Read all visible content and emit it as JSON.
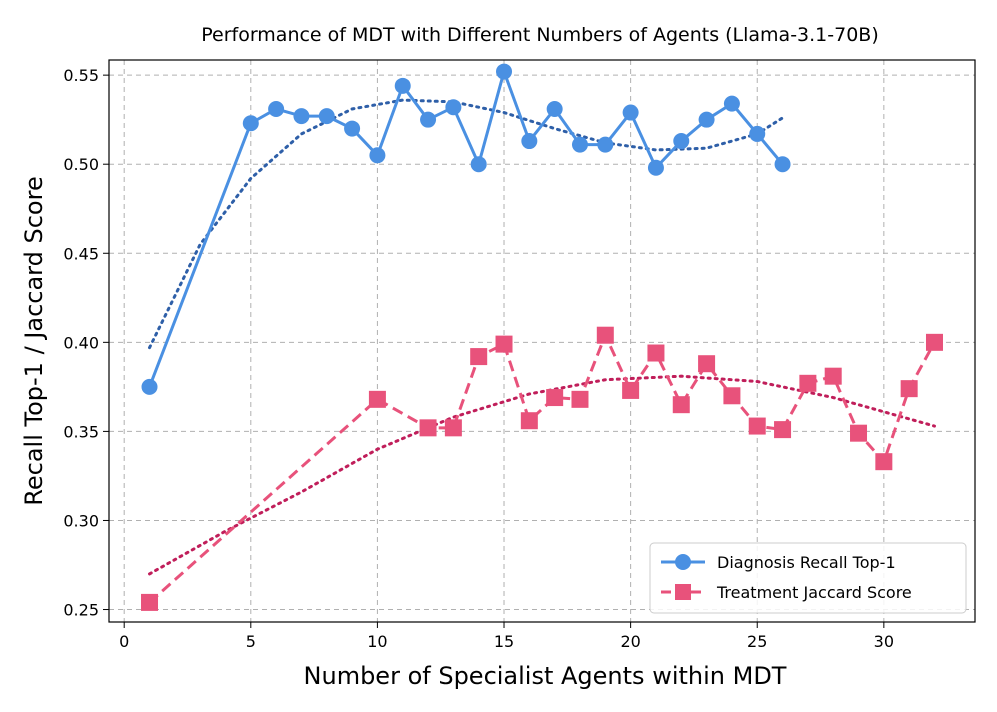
{
  "chart_data": {
    "type": "line",
    "title": "Performance of MDT with Different Numbers of Agents (Llama-3.1-70B)",
    "xlabel": "Number of Specialist Agents within MDT",
    "ylabel": "Recall Top-1 / Jaccard Score",
    "xlim": [
      -0.6,
      33.6
    ],
    "ylim": [
      0.243,
      0.5585
    ],
    "xticks": [
      0,
      5,
      10,
      15,
      20,
      25,
      30
    ],
    "yticks": [
      0.25,
      0.3,
      0.35,
      0.4,
      0.45,
      0.5,
      0.55
    ],
    "ytick_labels": [
      "0.25",
      "0.30",
      "0.35",
      "0.40",
      "0.45",
      "0.50",
      "0.55"
    ],
    "grid": true,
    "legend_position": "lower-right",
    "series": [
      {
        "name": "Diagnosis Recall Top-1",
        "color": "#4a90e2",
        "marker": "circle",
        "linestyle": "solid",
        "x": [
          1,
          5,
          6,
          7,
          8,
          9,
          10,
          11,
          12,
          13,
          14,
          15,
          16,
          17,
          18,
          19,
          20,
          21,
          22,
          23,
          24,
          25,
          26
        ],
        "y": [
          0.375,
          0.523,
          0.531,
          0.527,
          0.527,
          0.52,
          0.505,
          0.544,
          0.525,
          0.532,
          0.5,
          0.552,
          0.513,
          0.531,
          0.511,
          0.511,
          0.529,
          0.498,
          0.513,
          0.525,
          0.534,
          0.517,
          0.5
        ]
      },
      {
        "name": "Treatment Jaccard Score",
        "color": "#e8527b",
        "marker": "square",
        "linestyle": "dashed",
        "x": [
          1,
          10,
          12,
          13,
          14,
          15,
          16,
          17,
          18,
          19,
          20,
          21,
          22,
          23,
          24,
          25,
          26,
          27,
          28,
          29,
          30,
          31,
          32
        ],
        "y": [
          0.254,
          0.368,
          0.352,
          0.352,
          0.392,
          0.399,
          0.356,
          0.369,
          0.368,
          0.404,
          0.373,
          0.394,
          0.365,
          0.388,
          0.37,
          0.353,
          0.351,
          0.377,
          0.381,
          0.349,
          0.333,
          0.374,
          0.4
        ]
      }
    ],
    "trendlines": [
      {
        "name": "Diagnosis trend",
        "color": "#2e5fa8",
        "linestyle": "dotted",
        "x": [
          1,
          3,
          5,
          7,
          9,
          11,
          13,
          15,
          17,
          19,
          21,
          23,
          25,
          26
        ],
        "y": [
          0.397,
          0.455,
          0.492,
          0.517,
          0.531,
          0.536,
          0.535,
          0.529,
          0.52,
          0.512,
          0.508,
          0.509,
          0.517,
          0.526
        ]
      },
      {
        "name": "Treatment trend",
        "color": "#c01e5a",
        "linestyle": "dotted",
        "x": [
          1,
          4,
          7,
          10,
          13,
          16,
          19,
          22,
          25,
          28,
          30,
          32
        ],
        "y": [
          0.27,
          0.294,
          0.316,
          0.34,
          0.358,
          0.371,
          0.379,
          0.381,
          0.378,
          0.369,
          0.361,
          0.353
        ]
      }
    ]
  }
}
